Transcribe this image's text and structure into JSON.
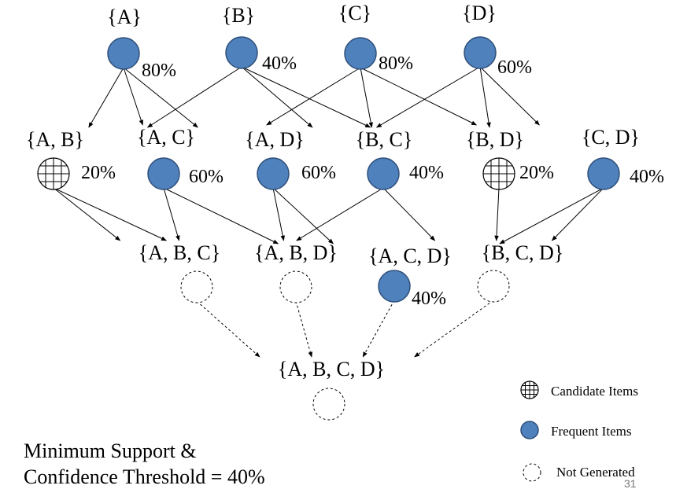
{
  "nodes": [
    {
      "id": "A",
      "label": "{A}",
      "support": "80%",
      "state": "frequent"
    },
    {
      "id": "B",
      "label": "{B}",
      "support": "40%",
      "state": "frequent"
    },
    {
      "id": "C",
      "label": "{C}",
      "support": "80%",
      "state": "frequent"
    },
    {
      "id": "D",
      "label": "{D}",
      "support": "60%",
      "state": "frequent"
    },
    {
      "id": "AB",
      "label": "{A, B}",
      "support": "20%",
      "state": "candidate"
    },
    {
      "id": "AC",
      "label": "{A, C}",
      "support": "60%",
      "state": "frequent"
    },
    {
      "id": "AD",
      "label": "{A, D}",
      "support": "60%",
      "state": "frequent"
    },
    {
      "id": "BC",
      "label": "{B, C}",
      "support": "40%",
      "state": "frequent"
    },
    {
      "id": "BD",
      "label": "{B, D}",
      "support": "20%",
      "state": "candidate"
    },
    {
      "id": "CD",
      "label": "{C, D}",
      "support": "40%",
      "state": "frequent"
    },
    {
      "id": "ABC",
      "label": "{A, B, C}",
      "support": "",
      "state": "not-generated"
    },
    {
      "id": "ABD",
      "label": "{A, B, D}",
      "support": "",
      "state": "not-generated"
    },
    {
      "id": "ACD",
      "label": "{A, C, D}",
      "support": "40%",
      "state": "frequent"
    },
    {
      "id": "BCD",
      "label": "{B, C, D}",
      "support": "",
      "state": "not-generated"
    },
    {
      "id": "ABCD",
      "label": "{A, B, C, D}",
      "support": "",
      "state": "not-generated"
    }
  ],
  "edges": [
    {
      "from": "A",
      "to": "AB"
    },
    {
      "from": "A",
      "to": "AC"
    },
    {
      "from": "A",
      "to": "AD"
    },
    {
      "from": "B",
      "to": "AB"
    },
    {
      "from": "B",
      "to": "BC"
    },
    {
      "from": "B",
      "to": "BD"
    },
    {
      "from": "C",
      "to": "AC"
    },
    {
      "from": "C",
      "to": "BC"
    },
    {
      "from": "C",
      "to": "CD"
    },
    {
      "from": "D",
      "to": "AD"
    },
    {
      "from": "D",
      "to": "BD"
    },
    {
      "from": "D",
      "to": "CD"
    },
    {
      "from": "AB",
      "to": "ABC"
    },
    {
      "from": "AB",
      "to": "ABD"
    },
    {
      "from": "AC",
      "to": "ABC"
    },
    {
      "from": "AC",
      "to": "ACD"
    },
    {
      "from": "AD",
      "to": "ABD"
    },
    {
      "from": "AD",
      "to": "ACD"
    },
    {
      "from": "BC",
      "to": "ABC"
    },
    {
      "from": "BC",
      "to": "BCD"
    },
    {
      "from": "BD",
      "to": "BCD"
    },
    {
      "from": "CD",
      "to": "ACD"
    },
    {
      "from": "CD",
      "to": "BCD"
    },
    {
      "from": "ABC",
      "to": "ABCD",
      "dashed": true
    },
    {
      "from": "ABD",
      "to": "ABCD",
      "dashed": true
    },
    {
      "from": "ACD",
      "to": "ABCD",
      "dashed": true
    },
    {
      "from": "BCD",
      "to": "ABCD",
      "dashed": true
    }
  ],
  "legend": [
    {
      "state": "candidate",
      "label": "Candidate Items"
    },
    {
      "state": "frequent",
      "label": "Frequent Items"
    },
    {
      "state": "not-generated",
      "label": "Not Generated"
    }
  ],
  "footer": {
    "line1": "Minimum Support &",
    "line2": "Confidence Threshold = 40%"
  },
  "page_number": "31",
  "colors": {
    "frequent_fill": "#4f81bd",
    "frequent_stroke": "#2f4f7a"
  }
}
